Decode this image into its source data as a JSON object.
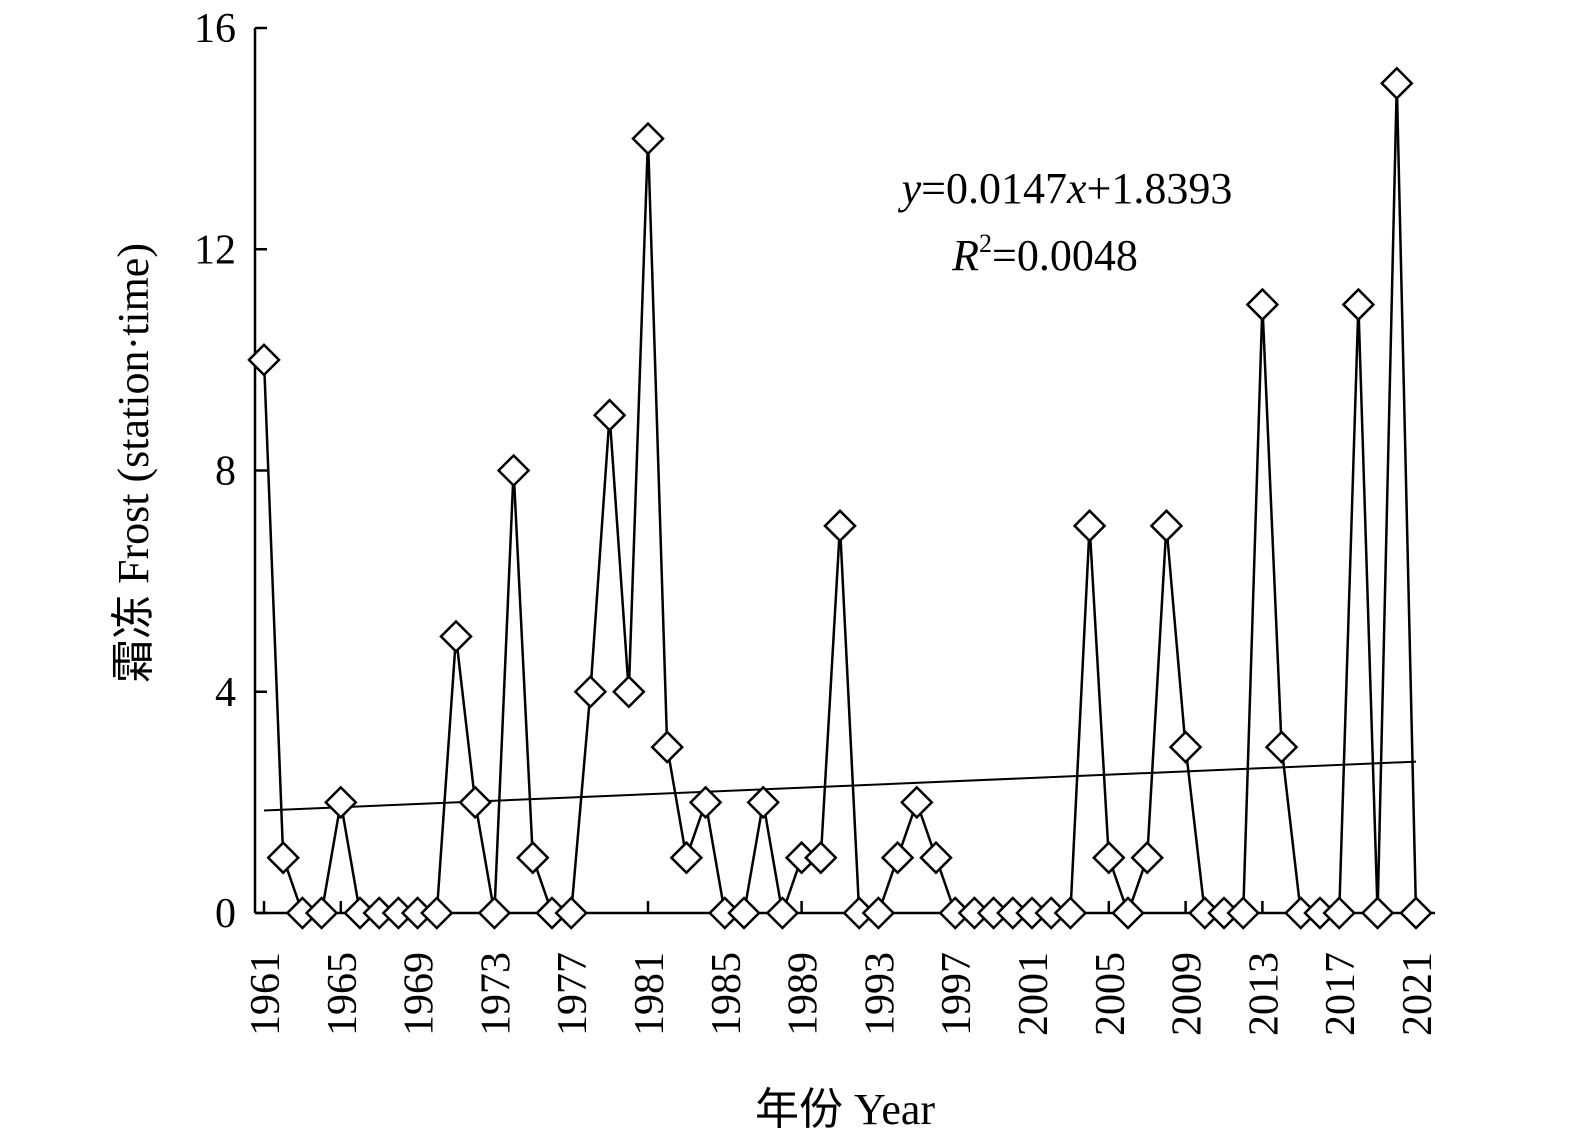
{
  "chart_data": {
    "type": "line",
    "xlabel": "年份 Year",
    "ylabel": "霜冻 Frost (station·time)",
    "xlim": [
      1961,
      2021
    ],
    "ylim": [
      0,
      16
    ],
    "x_ticks": [
      "1961",
      "1965",
      "1969",
      "1973",
      "1977",
      "1981",
      "1985",
      "1989",
      "1993",
      "1997",
      "2001",
      "2005",
      "2009",
      "2013",
      "2017",
      "2021"
    ],
    "y_ticks": [
      "0",
      "4",
      "8",
      "12",
      "16"
    ],
    "grid": false,
    "legend": "none",
    "marker": "diamond-open",
    "series": [
      {
        "x": [
          1961,
          1962,
          1963,
          1964,
          1965,
          1966,
          1967,
          1968,
          1969,
          1970,
          1971,
          1972,
          1973,
          1974,
          1975,
          1976,
          1977,
          1978,
          1979,
          1980,
          1981,
          1982,
          1983,
          1984,
          1985,
          1986,
          1987,
          1988,
          1989,
          1990,
          1991,
          1992,
          1993,
          1994,
          1995,
          1996,
          1997,
          1998,
          1999,
          2000,
          2001,
          2002,
          2003,
          2004,
          2005,
          2006,
          2007,
          2008,
          2009,
          2010,
          2011,
          2012,
          2013,
          2014,
          2015,
          2016,
          2017,
          2018,
          2019,
          2020,
          2021
        ],
        "values": [
          10,
          1,
          0,
          0,
          2,
          0,
          0,
          0,
          0,
          0,
          5,
          2,
          0,
          8,
          1,
          0,
          0,
          4,
          9,
          4,
          14,
          3,
          1,
          2,
          0,
          0,
          2,
          0,
          1,
          1,
          7,
          0,
          0,
          1,
          2,
          1,
          0,
          0,
          0,
          0,
          0,
          0,
          0,
          7,
          1,
          0,
          1,
          7,
          3,
          0,
          0,
          0,
          11,
          3,
          0,
          0,
          0,
          11,
          0,
          15,
          0
        ]
      }
    ],
    "trendline": {
      "slope": 0.0147,
      "intercept": 1.8393
    },
    "annotations": {
      "eq_y": "y",
      "eq_rest1": "=0.0147",
      "eq_x": "x",
      "eq_rest2": "+1.8393",
      "r_R": "R",
      "r_sup": "2",
      "r_rest": "=0.0048"
    }
  }
}
